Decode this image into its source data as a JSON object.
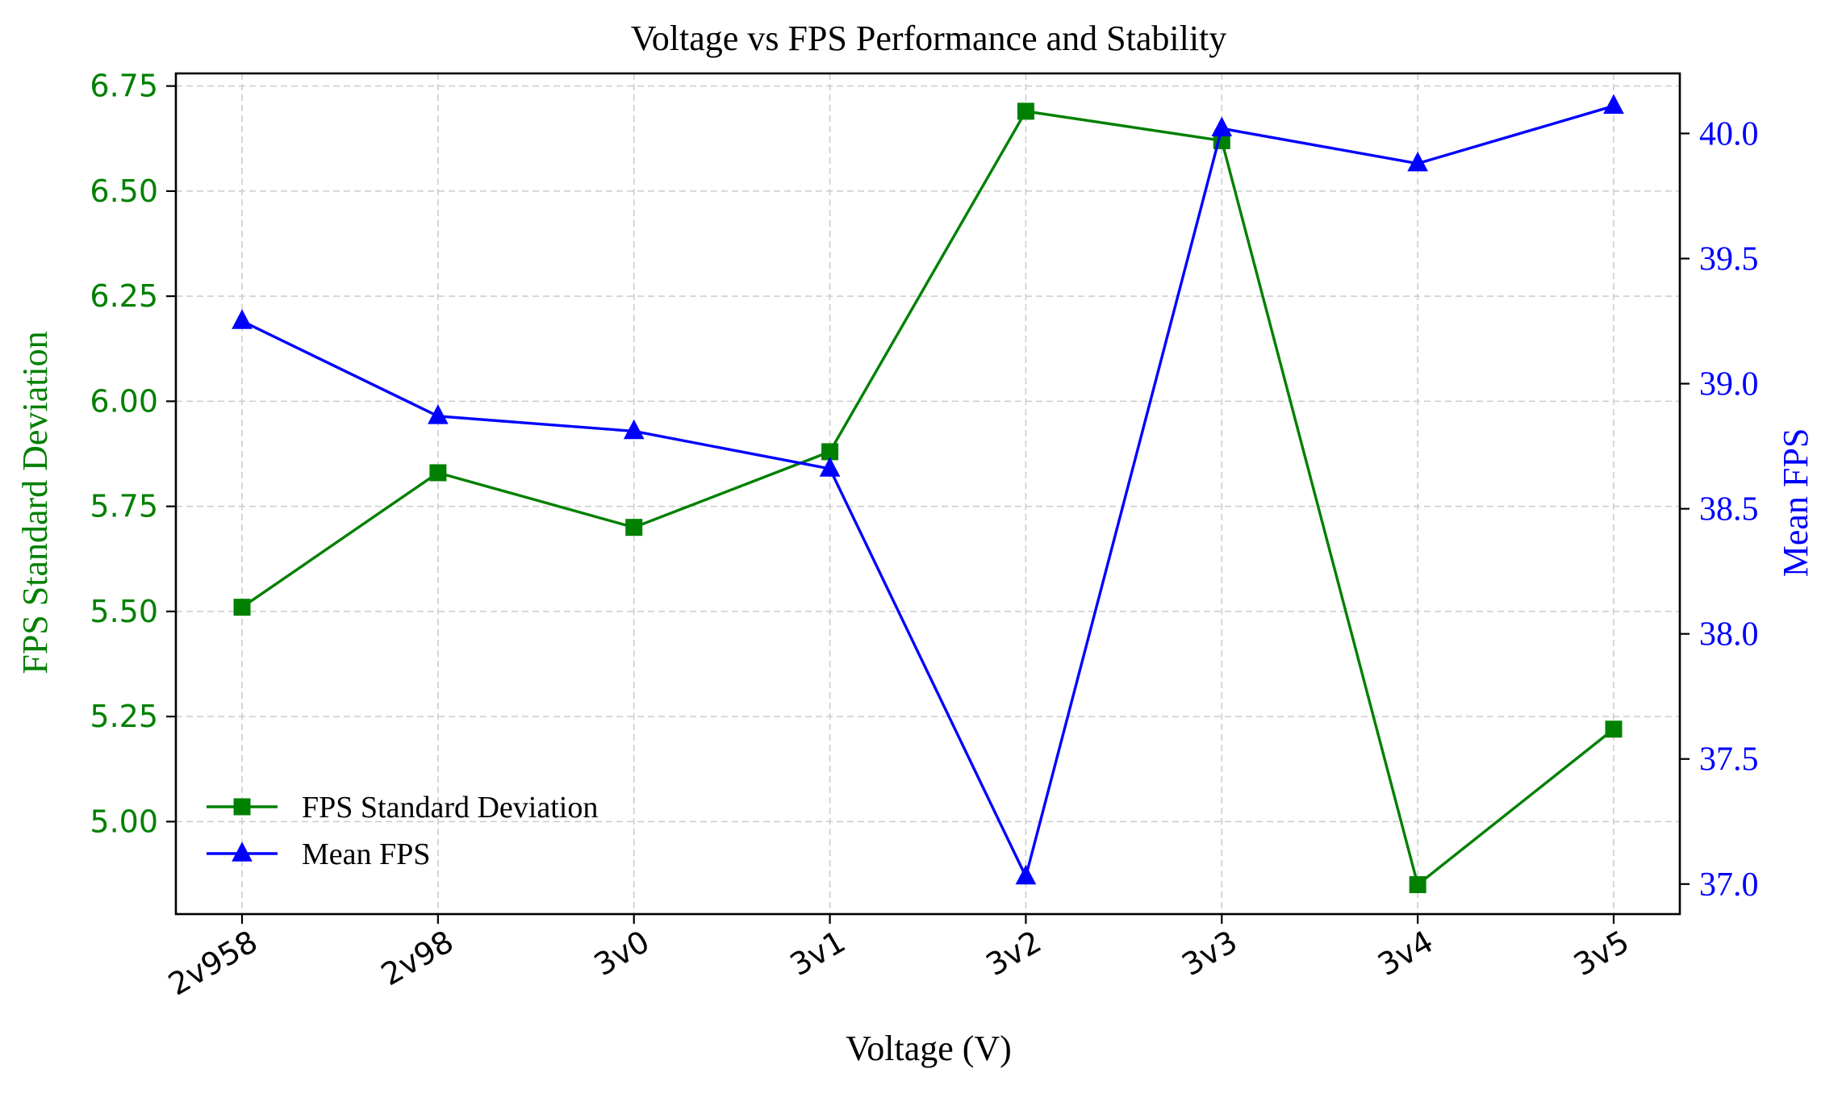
{
  "chart_data": {
    "type": "line",
    "title": "Voltage vs FPS Performance and Stability",
    "xlabel": "Voltage (V)",
    "ylabel_left": "FPS Standard Deviation",
    "ylabel_right": "Mean FPS",
    "categories": [
      "2v958",
      "2v98",
      "3v0",
      "3v1",
      "3v2",
      "3v3",
      "3v4",
      "3v5"
    ],
    "ylim_left": [
      4.78,
      6.78
    ],
    "ylim_right": [
      36.88,
      40.24
    ],
    "yticks_left": [
      "5.00",
      "5.25",
      "5.50",
      "5.75",
      "6.00",
      "6.25",
      "6.50",
      "6.75"
    ],
    "yticks_right": [
      "37.0",
      "37.5",
      "38.0",
      "38.5",
      "39.0",
      "39.5",
      "40.0"
    ],
    "grid": true,
    "legend_position": "lower-left",
    "series": [
      {
        "name": "FPS Standard Deviation",
        "axis": "left",
        "color": "#008000",
        "marker": "square",
        "values": [
          5.51,
          5.83,
          5.7,
          5.88,
          6.69,
          6.62,
          4.85,
          5.22
        ]
      },
      {
        "name": "Mean FPS",
        "axis": "right",
        "color": "#0000ff",
        "marker": "triangle",
        "values": [
          39.25,
          38.87,
          38.81,
          38.66,
          37.03,
          40.02,
          39.88,
          40.11
        ]
      }
    ]
  }
}
